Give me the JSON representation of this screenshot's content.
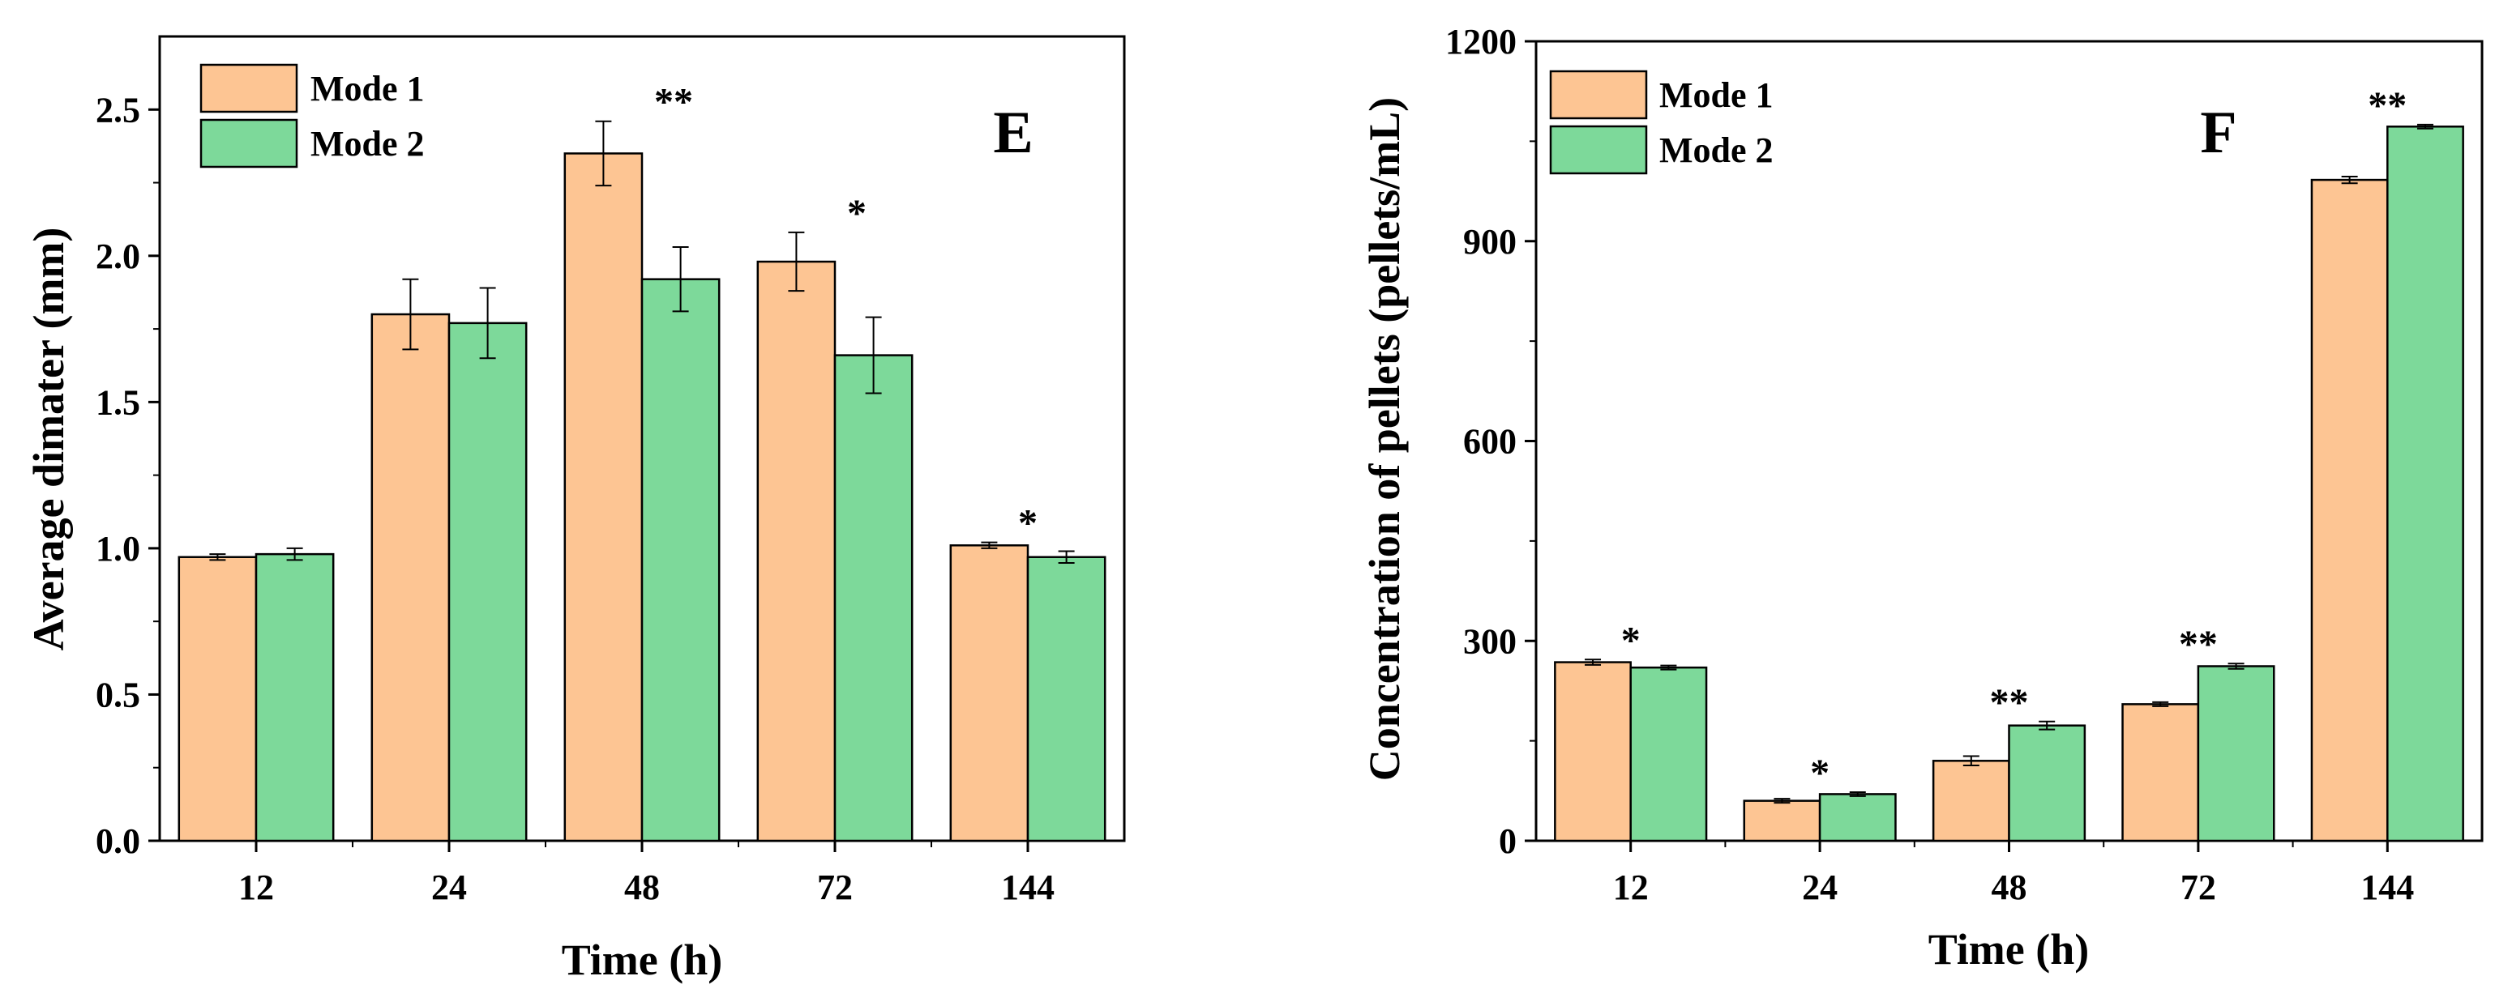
{
  "colors": {
    "mode1": "#FDC593",
    "mode2": "#7DD99A",
    "stroke": "#000000"
  },
  "chart_data": [
    {
      "id": "E",
      "type": "bar",
      "panel_label": "E",
      "xlabel": "Time (h)",
      "ylabel": "Average dimater (mm)",
      "categories": [
        "12",
        "24",
        "48",
        "72",
        "144"
      ],
      "ylim": [
        0,
        2.75
      ],
      "yticks": [
        0.0,
        0.5,
        1.0,
        1.5,
        2.0,
        2.5
      ],
      "ytick_labels": [
        "0.0",
        "0.5",
        "1.0",
        "1.5",
        "2.0",
        "2.5"
      ],
      "legend_position": "top-left",
      "series": [
        {
          "name": "Mode 1",
          "values": [
            0.97,
            1.8,
            2.35,
            1.98,
            1.01
          ],
          "errors": [
            0.01,
            0.12,
            0.11,
            0.1,
            0.01
          ]
        },
        {
          "name": "Mode 2",
          "values": [
            0.98,
            1.77,
            1.92,
            1.66,
            0.97
          ],
          "errors": [
            0.02,
            0.12,
            0.11,
            0.13,
            0.02
          ]
        }
      ],
      "significance": [
        "",
        "",
        "**",
        "*",
        "*"
      ]
    },
    {
      "id": "F",
      "type": "bar",
      "panel_label": "F",
      "xlabel": "Time (h)",
      "ylabel": "Concentration of pellets (pellets/mL)",
      "categories": [
        "12",
        "24",
        "48",
        "72",
        "144"
      ],
      "ylim": [
        0,
        1200
      ],
      "yticks": [
        0,
        300,
        600,
        900,
        1200
      ],
      "ytick_labels": [
        "0",
        "300",
        "600",
        "900",
        "1200"
      ],
      "legend_position": "top-left",
      "series": [
        {
          "name": "Mode 1",
          "values": [
            268,
            60,
            120,
            205,
            992
          ],
          "errors": [
            4,
            3,
            7,
            3,
            5
          ]
        },
        {
          "name": "Mode 2",
          "values": [
            260,
            70,
            173,
            262,
            1072
          ],
          "errors": [
            3,
            3,
            6,
            4,
            3
          ]
        }
      ],
      "significance": [
        "*",
        "*",
        "**",
        "**",
        "**"
      ]
    }
  ]
}
